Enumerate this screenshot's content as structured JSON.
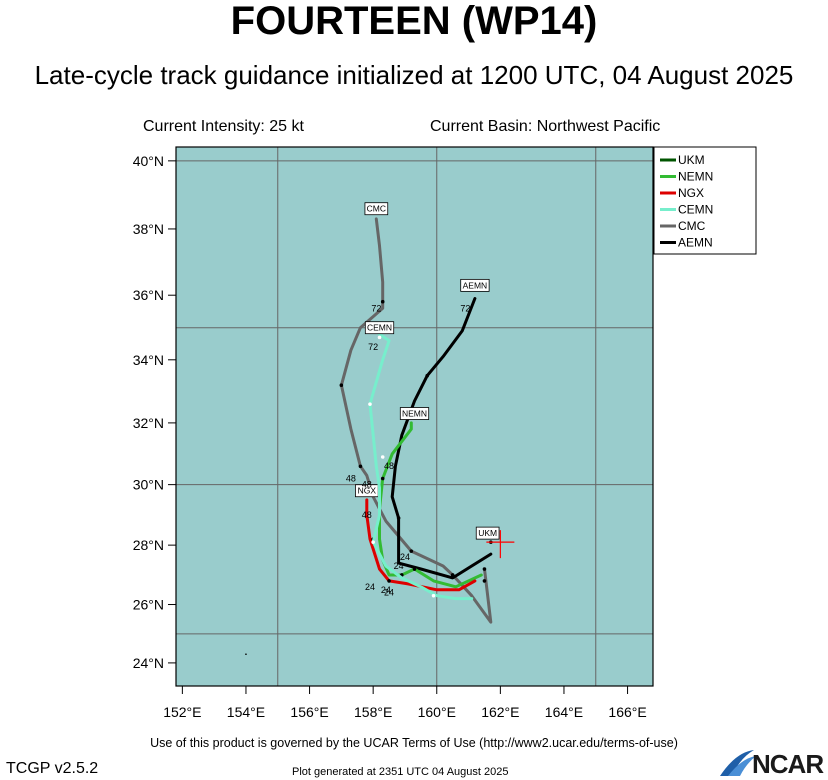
{
  "header": {
    "title": "FOURTEEN (WP14)",
    "subtitle": "Late-cycle track guidance initialized at 1200 UTC, 04 August 2025",
    "current_intensity": "Current Intensity: 25 kt",
    "current_basin": "Current Basin: Northwest Pacific"
  },
  "footer": {
    "terms": "Use of this product is governed by the UCAR Terms of Use (http://www2.ucar.edu/terms-of-use)",
    "version": "TCGP v2.5.2",
    "generated": "Plot generated at 2351 UTC   04 August 2025",
    "logo_text": "NCAR"
  },
  "colors": {
    "ocean": "#99cccc",
    "grid": "#666666",
    "UKM": "#005500",
    "NEMN": "#33bb33",
    "NGX": "#dd0000",
    "CEMN": "#77eecc",
    "CMC": "#666666",
    "AEMN": "#000000",
    "current_position": "#ff0000"
  },
  "map": {
    "projection": "mercator",
    "lon_range": [
      151.8,
      166.8
    ],
    "lat_range": [
      23.2,
      40.4
    ],
    "lon_ticks": [
      152,
      154,
      156,
      158,
      160,
      162,
      164,
      166
    ],
    "lon_tick_labels": [
      "152°E",
      "154°E",
      "156°E",
      "158°E",
      "160°E",
      "162°E",
      "164°E",
      "166°E"
    ],
    "lat_ticks": [
      24,
      26,
      28,
      30,
      32,
      34,
      36,
      38,
      40
    ],
    "lat_tick_labels": [
      "24°N",
      "26°N",
      "28°N",
      "30°N",
      "32°N",
      "34°N",
      "36°N",
      "38°N",
      "40°N"
    ],
    "grid_lons": [
      155,
      160,
      165
    ],
    "grid_lats": [
      25,
      30,
      35,
      40
    ],
    "current_position": {
      "lon": 162.0,
      "lat": 28.1
    }
  },
  "legend": [
    "UKM",
    "NEMN",
    "NGX",
    "CEMN",
    "CMC",
    "AEMN"
  ],
  "tracks": [
    {
      "name": "CMC",
      "label": "CMC",
      "points": [
        [
          161.5,
          27.2
        ],
        [
          161.7,
          25.4
        ],
        [
          161.1,
          26.3
        ],
        [
          160.5,
          27.0
        ],
        [
          160.2,
          27.3
        ],
        [
          159.2,
          27.8
        ],
        [
          158.4,
          28.8
        ],
        [
          158.0,
          29.6
        ],
        [
          157.8,
          30.3
        ],
        [
          157.6,
          30.6
        ],
        [
          157.3,
          31.8
        ],
        [
          157.0,
          33.2
        ],
        [
          157.3,
          34.3
        ],
        [
          157.6,
          35.0
        ],
        [
          158.3,
          35.6
        ],
        [
          158.3,
          36.4
        ],
        [
          158.2,
          37.5
        ],
        [
          158.1,
          38.3
        ]
      ],
      "markers": [
        [
          161.5,
          27.2
        ],
        [
          160.5,
          27.0
        ],
        [
          159.2,
          27.8
        ],
        [
          157.6,
          30.6
        ],
        [
          157.0,
          33.2
        ],
        [
          158.3,
          35.8
        ]
      ],
      "hour_labels": [
        {
          "text": "24",
          "lon": 159.0,
          "lat": 27.6
        },
        {
          "text": "48",
          "lon": 157.3,
          "lat": 30.2
        },
        {
          "text": "72",
          "lon": 158.1,
          "lat": 35.6
        }
      ],
      "tag_pos": [
        158.1,
        38.6
      ]
    },
    {
      "name": "AEMN",
      "label": "AEMN",
      "points": [
        [
          161.7,
          27.7
        ],
        [
          161.1,
          27.3
        ],
        [
          160.5,
          26.9
        ],
        [
          159.5,
          27.2
        ],
        [
          158.8,
          27.4
        ],
        [
          158.8,
          28.0
        ],
        [
          158.8,
          28.9
        ],
        [
          158.6,
          29.6
        ],
        [
          158.7,
          30.6
        ],
        [
          158.9,
          31.6
        ],
        [
          159.3,
          32.7
        ],
        [
          159.7,
          33.5
        ],
        [
          160.2,
          34.1
        ],
        [
          160.8,
          34.9
        ],
        [
          161.2,
          35.9
        ]
      ],
      "markers": [
        [
          161.5,
          26.8
        ],
        [
          159.7,
          33.5
        ],
        [
          158.8,
          28.9
        ]
      ],
      "hour_labels": [
        {
          "text": "72",
          "lon": 160.9,
          "lat": 35.6
        }
      ],
      "tag_pos": [
        161.2,
        36.3
      ]
    },
    {
      "name": "NEMN",
      "label": "NEMN",
      "points": [
        [
          161.4,
          27.0
        ],
        [
          160.6,
          26.6
        ],
        [
          159.9,
          26.8
        ],
        [
          159.3,
          27.2
        ],
        [
          158.9,
          27.0
        ],
        [
          158.5,
          27.0
        ],
        [
          158.3,
          27.5
        ],
        [
          158.2,
          28.2
        ],
        [
          158.2,
          29.2
        ],
        [
          158.3,
          30.2
        ],
        [
          158.6,
          31.0
        ],
        [
          159.2,
          31.8
        ],
        [
          159.2,
          32.0
        ]
      ],
      "markers": [
        [
          159.3,
          27.2
        ],
        [
          158.9,
          27.0
        ],
        [
          158.3,
          30.2
        ]
      ],
      "hour_labels": [
        {
          "text": "24",
          "lon": 158.8,
          "lat": 27.3
        }
      ],
      "tag_pos": [
        159.3,
        32.3
      ]
    },
    {
      "name": "NGX",
      "label": "NGX",
      "points": [
        [
          161.2,
          26.8
        ],
        [
          160.7,
          26.5
        ],
        [
          160.0,
          26.5
        ],
        [
          159.1,
          26.7
        ],
        [
          158.5,
          26.8
        ],
        [
          158.2,
          27.2
        ],
        [
          157.9,
          28.2
        ],
        [
          157.8,
          29.0
        ],
        [
          157.8,
          29.5
        ]
      ],
      "markers": [
        [
          158.5,
          26.8
        ],
        [
          158.0,
          28.2
        ]
      ],
      "hour_labels": [
        {
          "text": "24",
          "lon": 158.4,
          "lat": 26.5
        }
      ],
      "tag_pos": [
        157.8,
        29.8
      ]
    },
    {
      "name": "CEMN",
      "label": "CEMN",
      "points": [
        [
          161.1,
          26.2
        ],
        [
          160.6,
          26.2
        ],
        [
          160.0,
          26.3
        ],
        [
          159.5,
          26.6
        ],
        [
          158.9,
          26.9
        ],
        [
          158.4,
          27.3
        ],
        [
          158.0,
          28.1
        ],
        [
          158.2,
          29.0
        ],
        [
          158.2,
          29.9
        ],
        [
          158.1,
          30.6
        ],
        [
          158.0,
          31.6
        ],
        [
          157.9,
          32.6
        ],
        [
          158.1,
          33.3
        ],
        [
          158.3,
          34.0
        ],
        [
          158.5,
          34.6
        ],
        [
          158.2,
          34.8
        ]
      ],
      "markers": [
        [
          159.9,
          26.3
        ],
        [
          158.0,
          28.1
        ],
        [
          158.3,
          30.9
        ],
        [
          157.9,
          32.6
        ],
        [
          158.2,
          34.7
        ]
      ],
      "hour_labels": [
        {
          "text": "24",
          "lon": 158.5,
          "lat": 26.4
        },
        {
          "text": "48",
          "lon": 158.5,
          "lat": 30.6
        },
        {
          "text": "72",
          "lon": 158.0,
          "lat": 34.4
        }
      ],
      "tag_pos": [
        158.2,
        35.0
      ]
    },
    {
      "name": "UKM",
      "label": "UKM",
      "points": [
        [
          161.7,
          28.1
        ]
      ],
      "markers": [
        [
          161.7,
          28.1
        ]
      ],
      "hour_labels": [],
      "tag_pos": [
        161.6,
        28.4
      ]
    }
  ],
  "extra_labels": [
    {
      "text": "48",
      "lon": 157.8,
      "lat": 30.0
    },
    {
      "text": "48",
      "lon": 157.8,
      "lat": 29.0
    },
    {
      "text": "24",
      "lon": 157.9,
      "lat": 26.6
    }
  ]
}
